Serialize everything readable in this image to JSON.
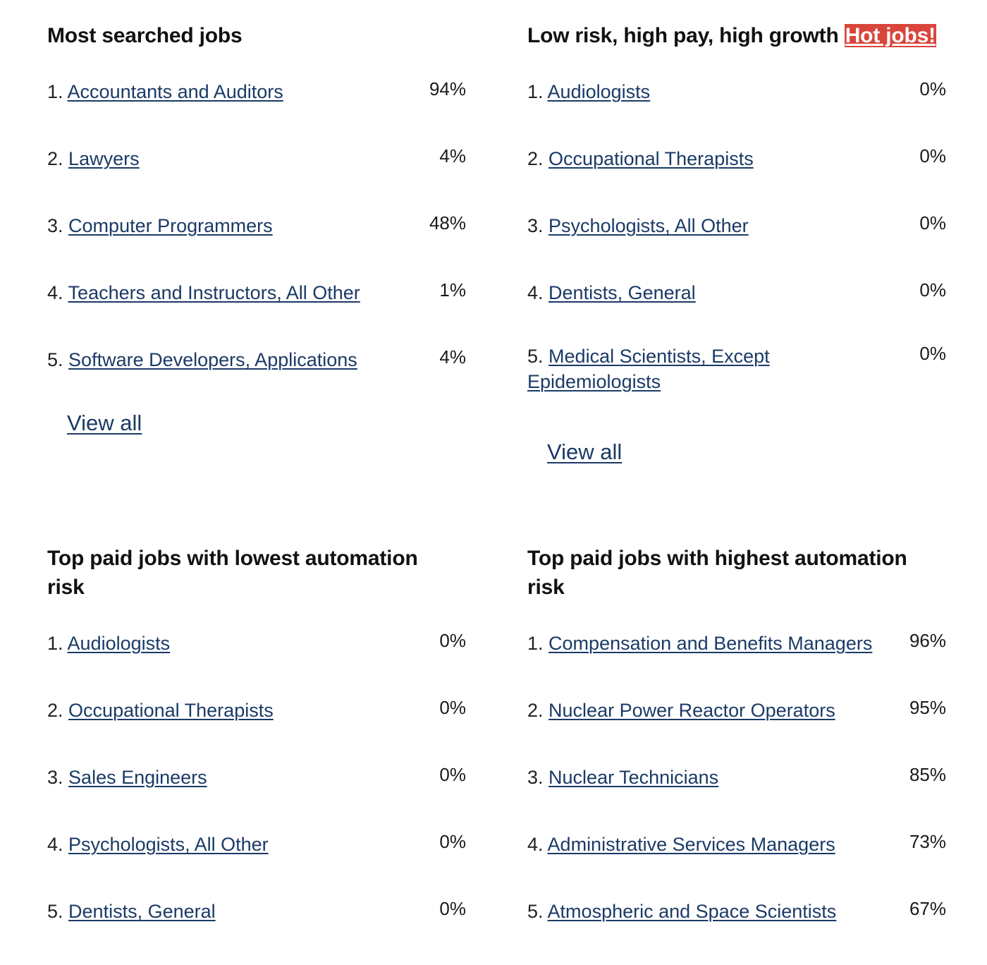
{
  "panels": [
    {
      "title": "Most searched jobs",
      "items": [
        {
          "rank": "1.",
          "label": "Accountants and Auditors",
          "percent": "94%"
        },
        {
          "rank": "2.",
          "label": "Lawyers",
          "percent": "4%"
        },
        {
          "rank": "3.",
          "label": "Computer Programmers",
          "percent": "48%"
        },
        {
          "rank": "4.",
          "label": "Teachers and Instructors, All Other",
          "percent": "1%"
        },
        {
          "rank": "5.",
          "label": "Software Developers, Applications",
          "percent": "4%"
        }
      ],
      "view_all": "View all"
    },
    {
      "title": "Low risk, high pay, high growth",
      "badge": "Hot jobs!",
      "items": [
        {
          "rank": "1.",
          "label": "Audiologists",
          "percent": "0%"
        },
        {
          "rank": "2.",
          "label": "Occupational Therapists",
          "percent": "0%"
        },
        {
          "rank": "3.",
          "label": "Psychologists, All Other",
          "percent": "0%"
        },
        {
          "rank": "4.",
          "label": "Dentists, General",
          "percent": "0%"
        },
        {
          "rank": "5.",
          "label": "Medical Scientists, Except Epidemiologists",
          "percent": "0%"
        }
      ],
      "view_all": "View all"
    },
    {
      "title": "Top paid jobs with lowest automation risk",
      "items": [
        {
          "rank": "1.",
          "label": "Audiologists",
          "percent": "0%"
        },
        {
          "rank": "2.",
          "label": "Occupational Therapists",
          "percent": "0%"
        },
        {
          "rank": "3.",
          "label": "Sales Engineers",
          "percent": "0%"
        },
        {
          "rank": "4.",
          "label": "Psychologists, All Other",
          "percent": "0%"
        },
        {
          "rank": "5.",
          "label": "Dentists, General",
          "percent": "0%"
        }
      ]
    },
    {
      "title": "Top paid jobs with highest automation risk",
      "items": [
        {
          "rank": "1.",
          "label": "Compensation and Benefits Managers",
          "percent": "96%"
        },
        {
          "rank": "2.",
          "label": "Nuclear Power Reactor Operators",
          "percent": "95%"
        },
        {
          "rank": "3.",
          "label": "Nuclear Technicians",
          "percent": "85%"
        },
        {
          "rank": "4.",
          "label": "Administrative Services Managers",
          "percent": "73%"
        },
        {
          "rank": "5.",
          "label": "Atmospheric and Space Scientists",
          "percent": "67%"
        }
      ]
    }
  ],
  "colors": {
    "link": "#1b3a66",
    "hot_badge_bg": "#d9453b",
    "hot_badge_text": "#ffffff",
    "title": "#111111"
  }
}
